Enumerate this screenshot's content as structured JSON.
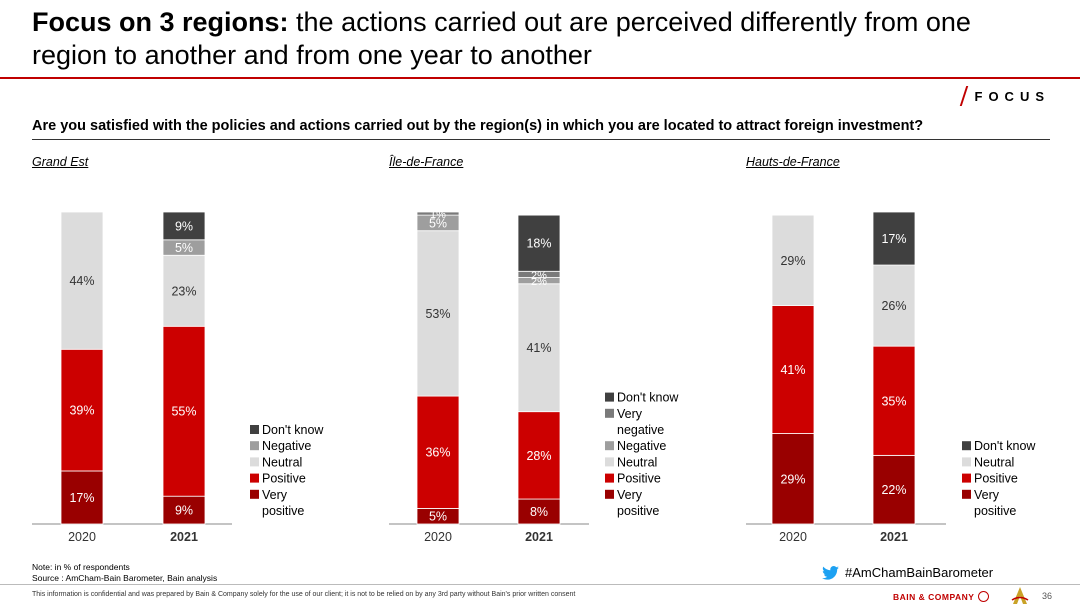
{
  "header": {
    "title_bold": "Focus on 3 regions:",
    "title_rest": " the actions carried out are perceived differently from one region to another and from one year to another",
    "focus_label": "FOCUS"
  },
  "question": "Are you satisfied with the policies and actions carried out by the region(s) in which you are located to attract foreign investment?",
  "colors": {
    "very_positive": "#990000",
    "positive": "#cc0000",
    "neutral": "#dcdcdc",
    "negative": "#9e9e9e",
    "very_negative": "#7a7a7a",
    "dont_know": "#404040",
    "accent": "#c00000"
  },
  "chart_data": [
    {
      "type": "bar",
      "stacked": true,
      "title": "Grand Est",
      "categories": [
        "2020",
        "2021"
      ],
      "series": [
        {
          "name": "Very positive",
          "key": "very_positive",
          "values": [
            17,
            9
          ],
          "labels": [
            "17%",
            "9%"
          ]
        },
        {
          "name": "Positive",
          "key": "positive",
          "values": [
            39,
            55
          ],
          "labels": [
            "39%",
            "55%"
          ]
        },
        {
          "name": "Neutral",
          "key": "neutral",
          "values": [
            44,
            23
          ],
          "labels": [
            "44%",
            "23%"
          ]
        },
        {
          "name": "Negative",
          "key": "negative",
          "values": [
            0,
            5
          ],
          "labels": [
            "",
            "5%"
          ]
        },
        {
          "name": "Don't know",
          "key": "dont_know",
          "values": [
            0,
            9
          ],
          "labels": [
            "",
            "9%"
          ]
        }
      ],
      "legend": [
        "Don't know",
        "Negative",
        "Neutral",
        "Positive",
        "Very positive"
      ],
      "legend_keys": [
        "dont_know",
        "negative",
        "neutral",
        "positive",
        "very_positive"
      ],
      "ylim": [
        0,
        100
      ]
    },
    {
      "type": "bar",
      "stacked": true,
      "title": "Île-de-France",
      "categories": [
        "2020",
        "2021"
      ],
      "series": [
        {
          "name": "Very positive",
          "key": "very_positive",
          "values": [
            5,
            8
          ],
          "labels": [
            "5%",
            "8%"
          ]
        },
        {
          "name": "Positive",
          "key": "positive",
          "values": [
            36,
            28
          ],
          "labels": [
            "36%",
            "28%"
          ]
        },
        {
          "name": "Neutral",
          "key": "neutral",
          "values": [
            53,
            41
          ],
          "labels": [
            "53%",
            "41%"
          ]
        },
        {
          "name": "Negative",
          "key": "negative",
          "values": [
            5,
            2
          ],
          "labels": [
            "5%",
            "2%"
          ]
        },
        {
          "name": "Very negative",
          "key": "very_negative",
          "values": [
            1,
            2
          ],
          "labels": [
            "1%",
            "2%"
          ]
        },
        {
          "name": "Don't know",
          "key": "dont_know",
          "values": [
            0,
            18
          ],
          "labels": [
            "",
            "18%"
          ]
        }
      ],
      "legend": [
        "Don't know",
        "Very negative",
        "Negative",
        "Neutral",
        "Positive",
        "Very positive"
      ],
      "legend_keys": [
        "dont_know",
        "very_negative",
        "negative",
        "neutral",
        "positive",
        "very_positive"
      ],
      "ylim": [
        0,
        100
      ]
    },
    {
      "type": "bar",
      "stacked": true,
      "title": "Hauts-de-France",
      "categories": [
        "2020",
        "2021"
      ],
      "series": [
        {
          "name": "Very positive",
          "key": "very_positive",
          "values": [
            29,
            22
          ],
          "labels": [
            "29%",
            "22%"
          ]
        },
        {
          "name": "Positive",
          "key": "positive",
          "values": [
            41,
            35
          ],
          "labels": [
            "41%",
            "35%"
          ]
        },
        {
          "name": "Neutral",
          "key": "neutral",
          "values": [
            29,
            26
          ],
          "labels": [
            "29%",
            "26%"
          ]
        },
        {
          "name": "Don't know",
          "key": "dont_know",
          "values": [
            0,
            17
          ],
          "labels": [
            "",
            "17%"
          ]
        }
      ],
      "legend": [
        "Don't know",
        "Neutral",
        "Positive",
        "Very positive"
      ],
      "legend_keys": [
        "dont_know",
        "neutral",
        "positive",
        "very_positive"
      ],
      "ylim": [
        0,
        100
      ]
    }
  ],
  "footer": {
    "note": "Note: in % of respondents",
    "source": "Source : AmCham-Bain Barometer, Bain analysis",
    "hashtag": "#AmChamBainBarometer",
    "disclaimer": "This information is confidential and was prepared by Bain & Company solely for the use of our client; it is not to be relied on by any 3rd party without Bain's prior written consent",
    "bain": "BAIN & COMPANY",
    "page_number": "36"
  }
}
